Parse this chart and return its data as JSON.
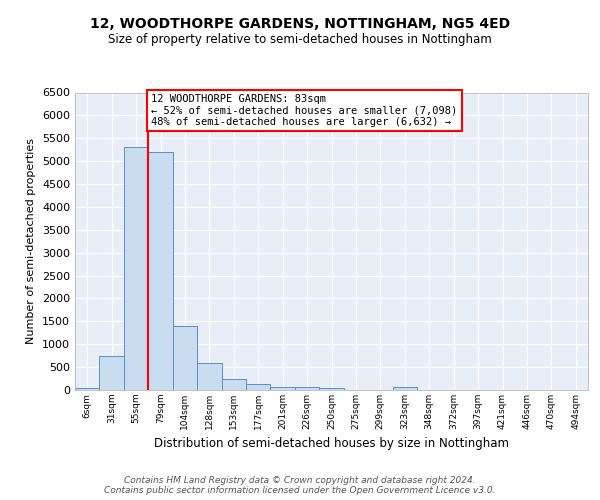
{
  "title1": "12, WOODTHORPE GARDENS, NOTTINGHAM, NG5 4ED",
  "title2": "Size of property relative to semi-detached houses in Nottingham",
  "xlabel": "Distribution of semi-detached houses by size in Nottingham",
  "ylabel": "Number of semi-detached properties",
  "bin_labels": [
    "6sqm",
    "31sqm",
    "55sqm",
    "79sqm",
    "104sqm",
    "128sqm",
    "153sqm",
    "177sqm",
    "201sqm",
    "226sqm",
    "250sqm",
    "275sqm",
    "299sqm",
    "323sqm",
    "348sqm",
    "372sqm",
    "397sqm",
    "421sqm",
    "446sqm",
    "470sqm",
    "494sqm"
  ],
  "bar_heights": [
    50,
    750,
    5300,
    5200,
    1400,
    600,
    250,
    125,
    75,
    75,
    50,
    0,
    0,
    75,
    0,
    0,
    0,
    0,
    0,
    0,
    0
  ],
  "bar_color": "#c9dcf0",
  "bar_edge_color": "#5b8fc9",
  "red_line_x": 3.0,
  "ylim_max": 6500,
  "ytick_step": 500,
  "annotation_line1": "12 WOODTHORPE GARDENS: 83sqm",
  "annotation_line2": "← 52% of semi-detached houses are smaller (7,098)",
  "annotation_line3": "48% of semi-detached houses are larger (6,632) →",
  "bg_color": "#e8eef8",
  "grid_color": "#ffffff",
  "fig_bg": "#ffffff",
  "footer_line1": "Contains HM Land Registry data © Crown copyright and database right 2024.",
  "footer_line2": "Contains public sector information licensed under the Open Government Licence v3.0.",
  "title1_fontsize": 10,
  "title2_fontsize": 8.5,
  "ylabel_fontsize": 8,
  "xlabel_fontsize": 8.5,
  "tick_fontsize": 8,
  "ann_fontsize": 7.5,
  "footer_fontsize": 6.5
}
